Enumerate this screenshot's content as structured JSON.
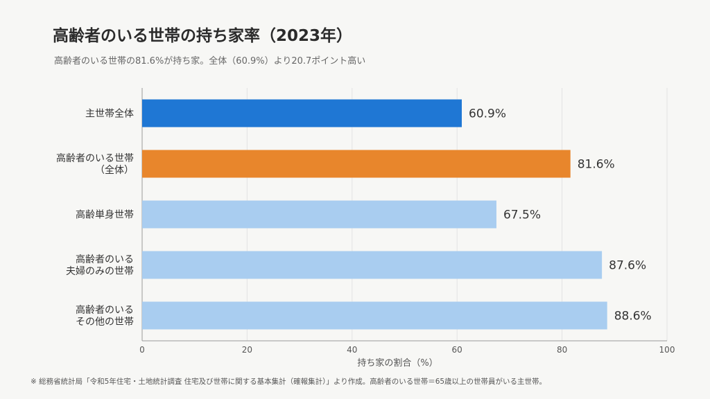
{
  "title": "高齢者のいる世帯の持ち家率（2023年）",
  "subtitle": "高齢者のいる世帯の81.6%が持ち家。全体（60.9%）より20.7ポイント高い",
  "footnote": "※ 総務省統計局「令和5年住宅・土地統計調査 住宅及び世帯に関する基本集計（確報集計）」より作成。高齢者のいる世帯＝65歳以上の世帯員がいる主世帯。",
  "colors": {
    "dark_blue": "#1f77d4",
    "orange": "#e8862c",
    "light_blue": "#a9cdf0",
    "grid": "#e3e3e3",
    "axis": "#999999"
  },
  "chart_data": {
    "type": "bar",
    "orientation": "horizontal",
    "categories": [
      [
        "主世帯全体"
      ],
      [
        "高齢者のいる世帯",
        "（全体）"
      ],
      [
        "高齢単身世帯"
      ],
      [
        "高齢者のいる",
        "夫婦のみの世帯"
      ],
      [
        "高齢者のいる",
        "その他の世帯"
      ]
    ],
    "values": [
      60.9,
      81.6,
      67.5,
      87.6,
      88.6
    ],
    "value_labels": [
      "60.9%",
      "81.6%",
      "67.5%",
      "87.6%",
      "88.6%"
    ],
    "bar_colors": [
      "dark_blue",
      "orange",
      "light_blue",
      "light_blue",
      "light_blue"
    ],
    "xlabel": "持ち家の割合（%）",
    "xlim": [
      0,
      100
    ],
    "xticks": [
      0,
      20,
      40,
      60,
      80,
      100
    ],
    "grid": true
  }
}
